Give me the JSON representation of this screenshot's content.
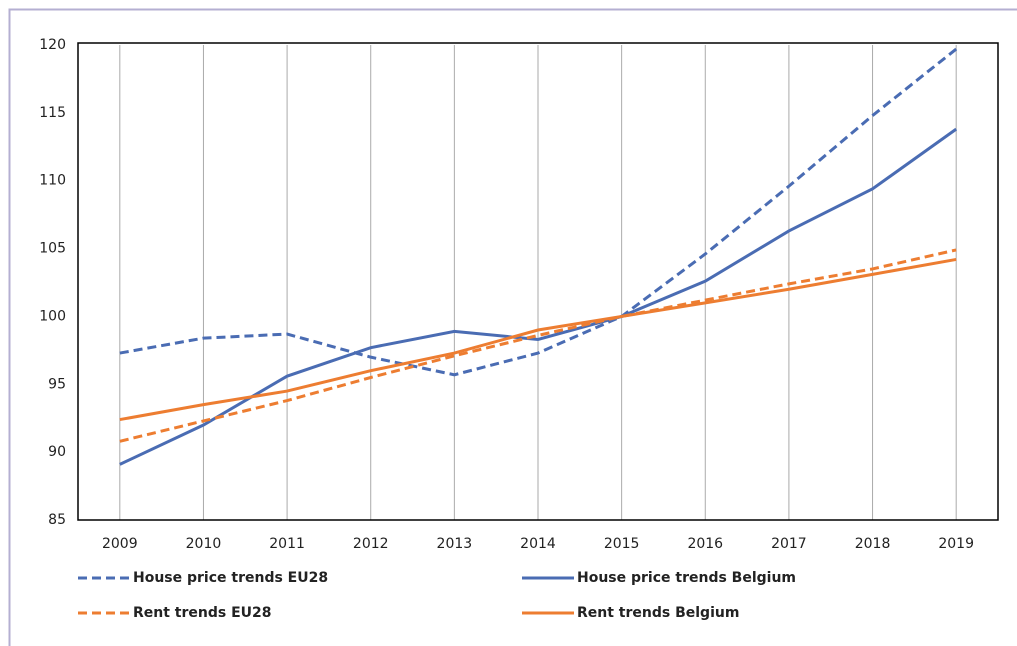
{
  "chart_data": {
    "type": "line",
    "categories": [
      "2009",
      "2010",
      "2011",
      "2012",
      "2013",
      "2014",
      "2015",
      "2016",
      "2017",
      "2018",
      "2019"
    ],
    "series": [
      {
        "name": "House price trends EU28",
        "color": "#4a6cb3",
        "dashed": true,
        "values": [
          97.3,
          98.4,
          98.7,
          97.0,
          95.7,
          97.3,
          100,
          104.6,
          109.6,
          114.8,
          119.7
        ]
      },
      {
        "name": "House price trends Belgium",
        "color": "#4a6cb3",
        "dashed": false,
        "values": [
          89.1,
          92.0,
          95.6,
          97.7,
          98.9,
          98.3,
          100,
          102.6,
          106.3,
          109.4,
          113.8
        ]
      },
      {
        "name": "Rent trends EU28",
        "color": "#ed7d31",
        "dashed": true,
        "values": [
          90.8,
          92.3,
          93.8,
          95.5,
          97.1,
          98.6,
          100,
          101.2,
          102.4,
          103.5,
          104.9
        ]
      },
      {
        "name": "Rent trends Belgium",
        "color": "#ed7d31",
        "dashed": false,
        "values": [
          92.4,
          93.5,
          94.5,
          96.0,
          97.3,
          99.0,
          100,
          101.0,
          102.0,
          103.1,
          104.2
        ]
      }
    ],
    "ylim": [
      85,
      120
    ],
    "yticks": [
      85,
      90,
      95,
      100,
      105,
      110,
      115,
      120
    ],
    "grid": "x",
    "legend": "bottom"
  }
}
